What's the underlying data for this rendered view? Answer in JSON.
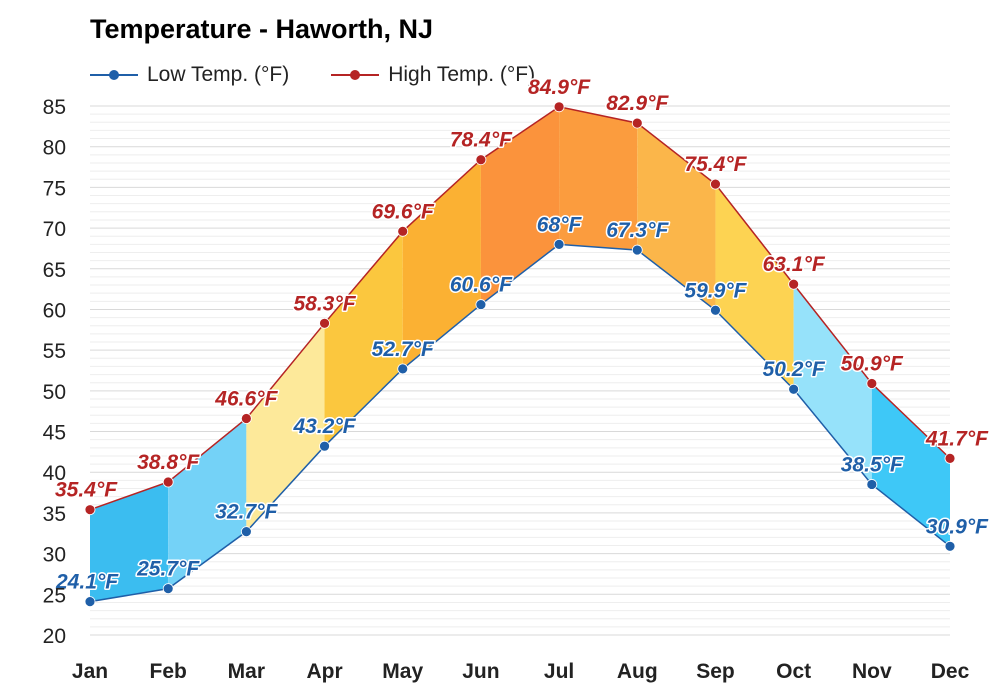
{
  "chart_data": {
    "type": "area",
    "title": "Temperature - Haworth, NJ",
    "categories": [
      "Jan",
      "Feb",
      "Mar",
      "Apr",
      "May",
      "Jun",
      "Jul",
      "Aug",
      "Sep",
      "Oct",
      "Nov",
      "Dec"
    ],
    "series": [
      {
        "name": "Low Temp. (°F)",
        "color": "#1f5fa8",
        "values": [
          24.1,
          25.7,
          32.7,
          43.2,
          52.7,
          60.6,
          68,
          67.3,
          59.9,
          50.2,
          38.5,
          30.9
        ],
        "labels": [
          "24.1°F",
          "25.7°F",
          "32.7°F",
          "43.2°F",
          "52.7°F",
          "60.6°F",
          "68°F",
          "67.3°F",
          "59.9°F",
          "50.2°F",
          "38.5°F",
          "30.9°F"
        ]
      },
      {
        "name": "High Temp. (°F)",
        "color": "#b52424",
        "values": [
          35.4,
          38.8,
          46.6,
          58.3,
          69.6,
          78.4,
          84.9,
          82.9,
          75.4,
          63.1,
          50.9,
          41.7
        ],
        "labels": [
          "35.4°F",
          "38.8°F",
          "46.6°F",
          "58.3°F",
          "69.6°F",
          "78.4°F",
          "84.9°F",
          "82.9°F",
          "75.4°F",
          "63.1°F",
          "50.9°F",
          "41.7°F"
        ]
      }
    ],
    "band_fill_colors": [
      "#3bbdf0",
      "#74d2f7",
      "#fde99a",
      "#fbc73e",
      "#fbb133",
      "#fb933c",
      "#fb9c3e",
      "#fbb64a",
      "#fdd352",
      "#96e2fa",
      "#3ec8f7"
    ],
    "yticks": [
      "20",
      "25",
      "30",
      "35",
      "40",
      "45",
      "50",
      "55",
      "60",
      "65",
      "70",
      "75",
      "80",
      "85"
    ],
    "ylim": [
      20,
      85
    ],
    "grid": true,
    "legend_position": "top-left"
  }
}
